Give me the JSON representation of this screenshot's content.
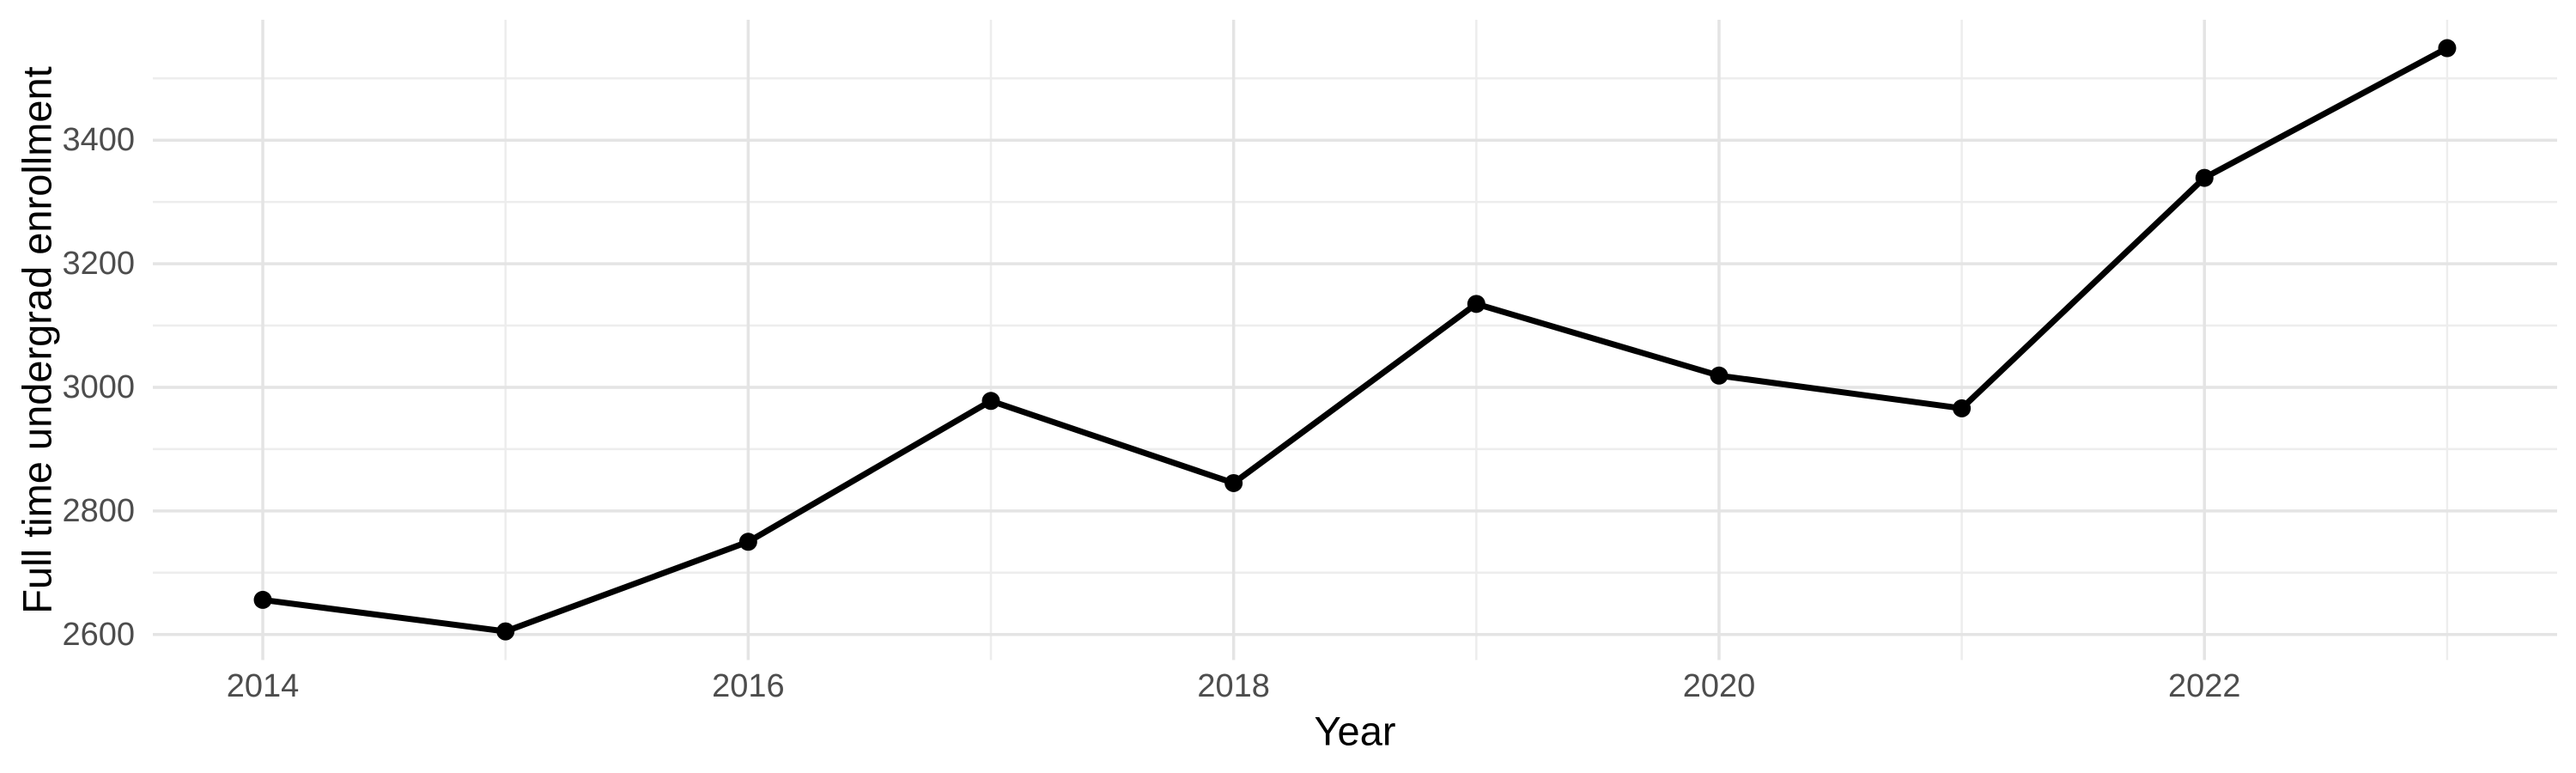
{
  "chart_data": {
    "type": "line",
    "title": "",
    "xlabel": "Year",
    "ylabel": "Full time undergrad enrollment",
    "x": [
      2014,
      2015,
      2016,
      2017,
      2018,
      2019,
      2020,
      2021,
      2022,
      2023
    ],
    "series": [
      {
        "name": "Full time undergrad enrollment",
        "values": [
          2656,
          2605,
          2750,
          2978,
          2845,
          3135,
          3019,
          2966,
          3339,
          3549
        ]
      }
    ],
    "xlim": [
      2013.547,
      2023.453
    ],
    "ylim": [
      2558.6,
      3594.9
    ],
    "x_major_ticks": [
      2014,
      2016,
      2018,
      2020,
      2022
    ],
    "x_tick_labels": [
      "2014",
      "2016",
      "2018",
      "2020",
      "2022"
    ],
    "x_minor_gridlines": [
      2015,
      2017,
      2019,
      2021,
      2023
    ],
    "y_major_ticks": [
      2600,
      2800,
      3000,
      3200,
      3400
    ],
    "y_tick_labels": [
      "2600",
      "2800",
      "3000",
      "3200",
      "3400"
    ],
    "y_minor_gridlines": [
      2700,
      2900,
      3100,
      3300,
      3500
    ],
    "grid": true,
    "legend_position": "none",
    "marker": "filled-circle",
    "colors": {
      "background": "#ffffff",
      "line": "#000000",
      "point": "#000000",
      "grid_major": "#e4e4e4",
      "grid_minor": "#ededed",
      "tick_label": "#4d4d4d",
      "axis_title": "#000000"
    }
  }
}
